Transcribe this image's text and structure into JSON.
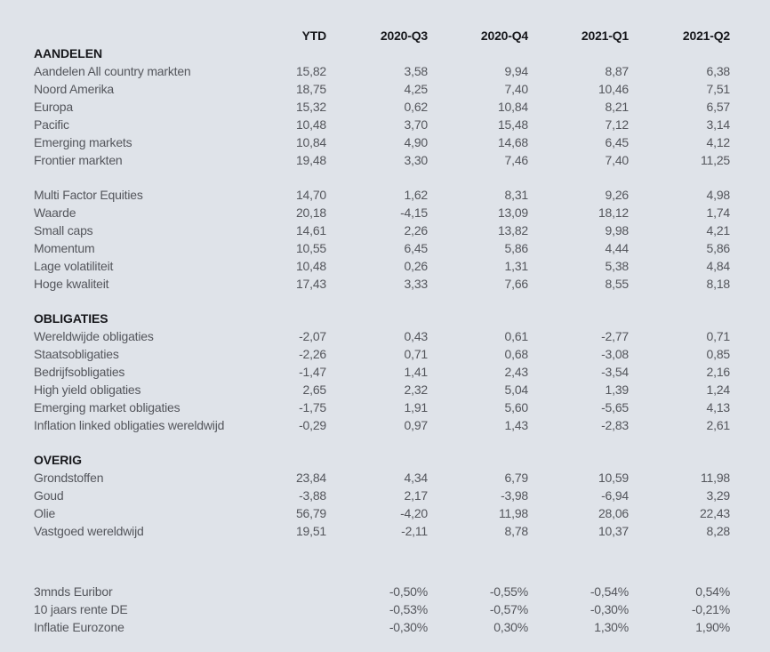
{
  "page": {
    "background_color": "#dfe3e9",
    "text_color": "#54565c",
    "heading_color": "#17181c"
  },
  "table": {
    "columns": [
      "YTD",
      "2020-Q3",
      "2020-Q4",
      "2021-Q1",
      "2021-Q2"
    ],
    "sections": [
      {
        "title": "AANDELEN",
        "rows": [
          {
            "label": "Aandelen All country markten",
            "values": [
              "15,82",
              "3,58",
              "9,94",
              "8,87",
              "6,38"
            ]
          },
          {
            "label": "Noord Amerika",
            "values": [
              "18,75",
              "4,25",
              "7,40",
              "10,46",
              "7,51"
            ]
          },
          {
            "label": "Europa",
            "values": [
              "15,32",
              "0,62",
              "10,84",
              "8,21",
              "6,57"
            ]
          },
          {
            "label": "Pacific",
            "values": [
              "10,48",
              "3,70",
              "15,48",
              "7,12",
              "3,14"
            ]
          },
          {
            "label": "Emerging markets",
            "values": [
              "10,84",
              "4,90",
              "14,68",
              "6,45",
              "4,12"
            ]
          },
          {
            "label": "Frontier markten",
            "values": [
              "19,48",
              "3,30",
              "7,46",
              "7,40",
              "11,25"
            ]
          }
        ]
      },
      {
        "title": "",
        "rows": [
          {
            "label": "Multi Factor Equities",
            "values": [
              "14,70",
              "1,62",
              "8,31",
              "9,26",
              "4,98"
            ]
          },
          {
            "label": "Waarde",
            "values": [
              "20,18",
              "-4,15",
              "13,09",
              "18,12",
              "1,74"
            ]
          },
          {
            "label": "Small caps",
            "values": [
              "14,61",
              "2,26",
              "13,82",
              "9,98",
              "4,21"
            ]
          },
          {
            "label": "Momentum",
            "values": [
              "10,55",
              "6,45",
              "5,86",
              "4,44",
              "5,86"
            ]
          },
          {
            "label": "Lage volatiliteit",
            "values": [
              "10,48",
              "0,26",
              "1,31",
              "5,38",
              "4,84"
            ]
          },
          {
            "label": "Hoge kwaliteit",
            "values": [
              "17,43",
              "3,33",
              "7,66",
              "8,55",
              "8,18"
            ]
          }
        ]
      },
      {
        "title": "OBLIGATIES",
        "rows": [
          {
            "label": "Wereldwijde obligaties",
            "values": [
              "-2,07",
              "0,43",
              "0,61",
              "-2,77",
              "0,71"
            ]
          },
          {
            "label": "Staatsobligaties",
            "values": [
              "-2,26",
              "0,71",
              "0,68",
              "-3,08",
              "0,85"
            ]
          },
          {
            "label": "Bedrijfsobligaties",
            "values": [
              "-1,47",
              "1,41",
              "2,43",
              "-3,54",
              "2,16"
            ]
          },
          {
            "label": "High yield obligaties",
            "values": [
              "2,65",
              "2,32",
              "5,04",
              "1,39",
              "1,24"
            ]
          },
          {
            "label": "Emerging market obligaties",
            "values": [
              "-1,75",
              "1,91",
              "5,60",
              "-5,65",
              "4,13"
            ]
          },
          {
            "label": "Inflation linked obligaties wereldwijd",
            "values": [
              "-0,29",
              "0,97",
              "1,43",
              "-2,83",
              "2,61"
            ]
          }
        ]
      },
      {
        "title": "OVERIG",
        "rows": [
          {
            "label": "Grondstoffen",
            "values": [
              "23,84",
              "4,34",
              "6,79",
              "10,59",
              "11,98"
            ]
          },
          {
            "label": "Goud",
            "values": [
              "-3,88",
              "2,17",
              "-3,98",
              "-6,94",
              "3,29"
            ]
          },
          {
            "label": "Olie",
            "values": [
              "56,79",
              "-4,20",
              "11,98",
              "28,06",
              "22,43"
            ]
          },
          {
            "label": "Vastgoed wereldwijd",
            "values": [
              "19,51",
              "-2,11",
              "8,78",
              "10,37",
              "8,28"
            ]
          }
        ]
      },
      {
        "title": "",
        "rows": [
          {
            "label": "3mnds Euribor",
            "values": [
              "",
              "-0,50%",
              "-0,55%",
              "-0,54%",
              "0,54%"
            ]
          },
          {
            "label": "10 jaars rente DE",
            "values": [
              "",
              "-0,53%",
              "-0,57%",
              "-0,30%",
              "-0,21%"
            ]
          },
          {
            "label": "Inflatie Eurozone",
            "values": [
              "",
              "-0,30%",
              "0,30%",
              "1,30%",
              "1,90%"
            ]
          }
        ]
      }
    ]
  }
}
